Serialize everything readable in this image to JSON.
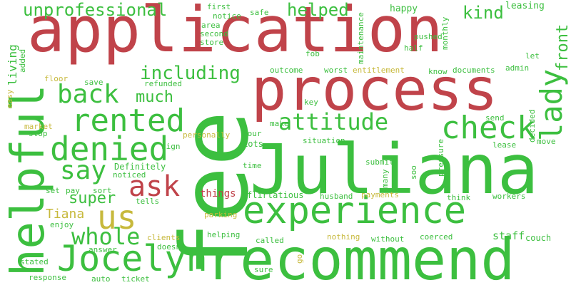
{
  "colors": {
    "red": "#c0434a",
    "green": "#3cbf3f",
    "olive": "#c7b93c"
  },
  "words": {
    "application": "application",
    "fee": "fee",
    "process": "process",
    "juliana": "Juliana",
    "recommend": "recommend",
    "experience": "experience",
    "helpful": "helpful",
    "jocelyn": "Jocelyn",
    "check": "check",
    "rented": "rented",
    "denied": "denied",
    "back": "back",
    "say": "say",
    "us": "us",
    "ask": "ask",
    "lady": "lady",
    "attitude": "attitude",
    "whole": "whole",
    "including": "including",
    "unprofessional": "unprofessional",
    "helped": "helped",
    "kind": "kind",
    "front": "front",
    "super": "super",
    "much": "much",
    "tiana": "Tiana",
    "things": "things",
    "living": "living",
    "happy": "happy",
    "leasing": "leasing",
    "first": "first",
    "notice": "notice",
    "safe": "safe",
    "area": "area",
    "second": "second",
    "store": "store",
    "maintenance": "maintenance",
    "fob": "fob",
    "half": "half",
    "pushed": "pushed",
    "monthly": "monthly",
    "let": "let",
    "admin": "admin",
    "know": "know",
    "documents": "documents",
    "outcome": "outcome",
    "worst": "worst",
    "entitlement": "entitlement",
    "added": "added",
    "floor": "floor",
    "save": "save",
    "refunded": "refunded",
    "easy": "easy",
    "key": "key",
    "market": "market",
    "stop": "stop",
    "make": "make",
    "personally": "personally",
    "tour": "tour",
    "situation": "situation",
    "send": "send",
    "decided": "decided",
    "lease": "lease",
    "move": "move",
    "sign": "sign",
    "lots": "Lots",
    "time": "time",
    "submit": "submit",
    "many": "many",
    "soo": "soo",
    "pressure": "pressure",
    "definitely": "Definitely",
    "noticed": "noticed",
    "set": "set",
    "pay": "pay",
    "sort": "sort",
    "tells": "tells",
    "flirtatious": "flirtatious",
    "husband": "husband",
    "payments": "payments",
    "think": "think",
    "workers": "workers",
    "enjoy": "enjoy",
    "parking": "parking",
    "staff": "staff",
    "couch": "couch",
    "clients": "clients",
    "doesn": "doesn",
    "helping": "helping",
    "nothing": "nothing",
    "coerced": "coerced",
    "answer": "answer",
    "called": "called",
    "without": "without",
    "go": "go",
    "stated": "stated",
    "sure": "sure",
    "response": "response",
    "auto": "auto",
    "ticket": "ticket"
  }
}
